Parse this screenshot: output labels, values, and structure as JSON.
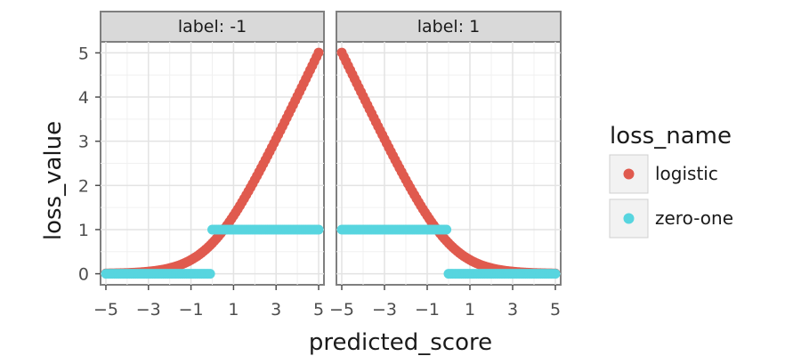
{
  "chart_data": {
    "type": "scatter",
    "xlabel": "predicted_score",
    "ylabel": "loss_value",
    "xlim": [
      -5.25,
      5.25
    ],
    "ylim": [
      -0.25,
      5.25
    ],
    "x_ticks": [
      -5,
      -3,
      -1,
      1,
      3,
      5
    ],
    "x_tick_labels": [
      "−5",
      "−3",
      "−1",
      "1",
      "3",
      "5"
    ],
    "y_ticks": [
      0,
      1,
      2,
      3,
      4,
      5
    ],
    "y_tick_labels": [
      "0",
      "1",
      "2",
      "3",
      "4",
      "5"
    ],
    "grid": true,
    "legend": {
      "title": "loss_name",
      "placement": "right",
      "entries": [
        "logistic",
        "zero-one"
      ]
    },
    "series_colors": {
      "logistic": "#e05a4e",
      "zero-one": "#57d5df"
    },
    "panels": [
      {
        "strip": "label: -1",
        "label": -1,
        "series": [
          {
            "name": "logistic",
            "formula": "log(1 + exp(x))",
            "x_range": [
              -5,
              5
            ],
            "n_points": 101
          },
          {
            "name": "zero-one",
            "rule": "0 if x < 0 else 1",
            "x_range": [
              -5,
              5
            ],
            "n_points": 101
          }
        ]
      },
      {
        "strip": "label: 1",
        "label": 1,
        "series": [
          {
            "name": "logistic",
            "formula": "log(1 + exp(-x))",
            "x_range": [
              -5,
              5
            ],
            "n_points": 101
          },
          {
            "name": "zero-one",
            "rule": "1 if x < 0 else 0",
            "x_range": [
              -5,
              5
            ],
            "n_points": 101
          }
        ]
      }
    ]
  }
}
